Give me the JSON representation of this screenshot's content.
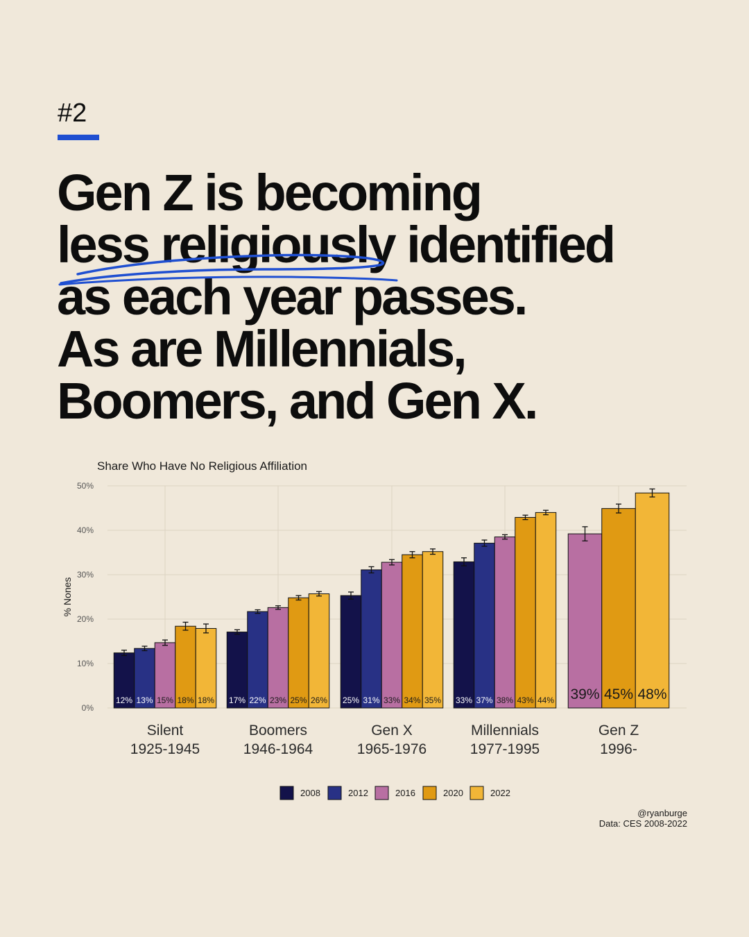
{
  "slide": {
    "number": "#2",
    "headline_lines": [
      "Gen Z is becoming",
      "less religiously identified",
      "as each year passes.",
      "As are Millennials,",
      "Boomers, and Gen X."
    ]
  },
  "credit": {
    "author": "@ryanburge",
    "source": "Data: CES 2008-2022"
  },
  "colors": {
    "background": "#f0e8da",
    "accent": "#1f4fd1",
    "2008": "#13124a",
    "2012": "#283185",
    "2016": "#b86fa2",
    "2020": "#e09a13",
    "2022": "#f2b637"
  },
  "chart_data": {
    "type": "bar",
    "title": "Share Who Have No Religious Affiliation",
    "xlabel": "",
    "ylabel": "% Nones",
    "ylim": [
      0,
      50
    ],
    "yticks": [
      0,
      10,
      20,
      30,
      40,
      50
    ],
    "ytick_labels": [
      "0%",
      "10%",
      "20%",
      "30%",
      "40%",
      "50%"
    ],
    "grid": true,
    "legend_position": "bottom",
    "categories": [
      {
        "name": "Silent",
        "years": "1925-1945"
      },
      {
        "name": "Boomers",
        "years": "1946-1964"
      },
      {
        "name": "Gen X",
        "years": "1965-1976"
      },
      {
        "name": "Millennials",
        "years": "1977-1995"
      },
      {
        "name": "Gen Z",
        "years": "1996-"
      }
    ],
    "series": [
      {
        "name": "2008",
        "values": [
          12.4,
          17.1,
          25.3,
          32.9,
          null
        ],
        "errors": [
          0.6,
          0.5,
          0.8,
          0.9,
          null
        ],
        "labels": [
          "12%",
          "17%",
          "25%",
          "33%",
          null
        ]
      },
      {
        "name": "2012",
        "values": [
          13.4,
          21.7,
          31.1,
          37.1,
          null
        ],
        "errors": [
          0.5,
          0.4,
          0.7,
          0.7,
          null
        ],
        "labels": [
          "13%",
          "22%",
          "31%",
          "37%",
          null
        ]
      },
      {
        "name": "2016",
        "values": [
          14.7,
          22.6,
          32.8,
          38.5,
          39.2
        ],
        "errors": [
          0.6,
          0.4,
          0.6,
          0.5,
          1.6
        ],
        "labels": [
          "15%",
          "23%",
          "33%",
          "38%",
          "39%"
        ]
      },
      {
        "name": "2020",
        "values": [
          18.4,
          24.8,
          34.5,
          42.9,
          44.9
        ],
        "errors": [
          0.9,
          0.5,
          0.7,
          0.5,
          1.0
        ],
        "labels": [
          "18%",
          "25%",
          "34%",
          "43%",
          "45%"
        ]
      },
      {
        "name": "2022",
        "values": [
          17.9,
          25.7,
          35.2,
          44.0,
          48.4
        ],
        "errors": [
          1.0,
          0.5,
          0.6,
          0.5,
          0.9
        ],
        "labels": [
          "18%",
          "26%",
          "35%",
          "44%",
          "48%"
        ]
      }
    ]
  }
}
